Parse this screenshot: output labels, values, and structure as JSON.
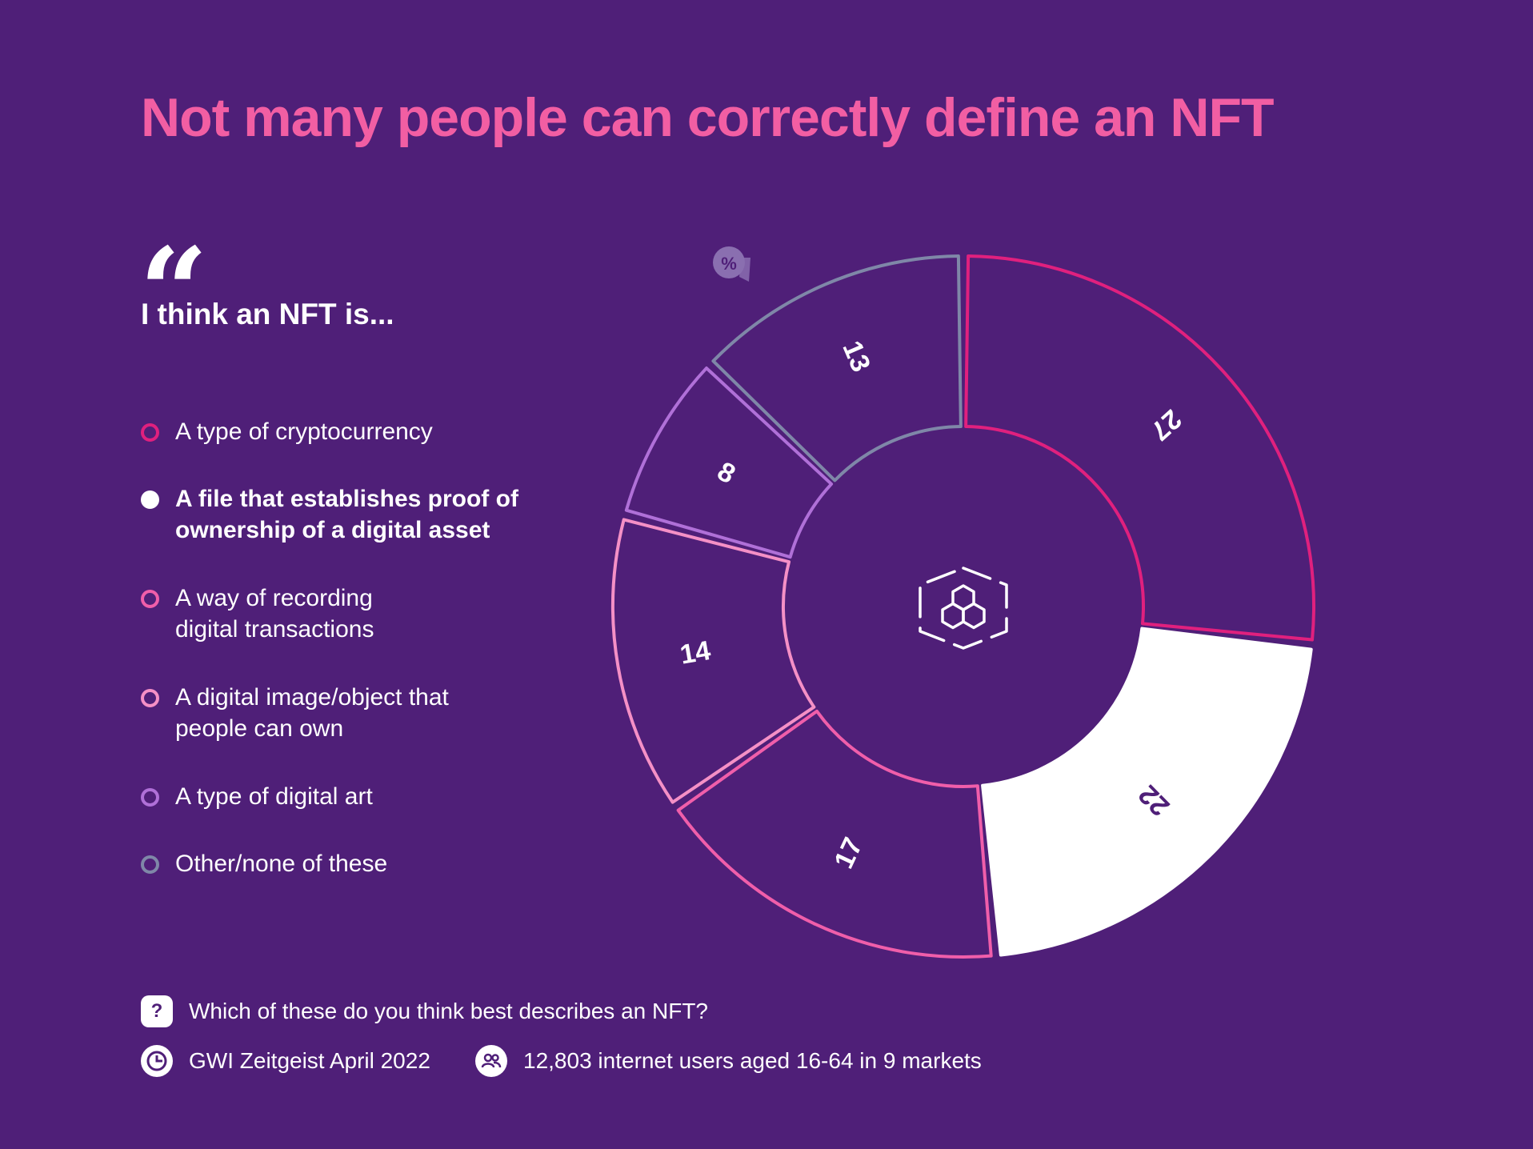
{
  "title": "Not many people can correctly define an NFT",
  "quote": {
    "mark": "“",
    "text": "I think an NFT is..."
  },
  "unit_badge": "%",
  "legend": [
    {
      "label": "A type of cryptocurrency",
      "color": "#e0207e",
      "filled": false
    },
    {
      "label": "A file that establishes proof of ownership of a digital asset",
      "color": "#ffffff",
      "filled": true
    },
    {
      "label": "A way of recording digital transactions",
      "color": "#f05eaa",
      "filled": false
    },
    {
      "label": "A digital image/object that people can own",
      "color": "#f590c6",
      "filled": false
    },
    {
      "label": "A type of digital art",
      "color": "#b070d8",
      "filled": false
    },
    {
      "label": "Other/none of these",
      "color": "#7f87a8",
      "filled": false
    }
  ],
  "chart_data": {
    "type": "pie",
    "variant": "donut",
    "unit": "%",
    "categories": [
      "A type of cryptocurrency",
      "A file that establishes proof of ownership of a digital asset",
      "A way of recording digital transactions",
      "A digital image/object that people can own",
      "A type of digital art",
      "Other/none of these"
    ],
    "values": [
      27,
      22,
      17,
      14,
      8,
      13
    ],
    "colors": [
      "#e0207e",
      "#ffffff",
      "#f05eaa",
      "#f590c6",
      "#b070d8",
      "#7f87a8"
    ],
    "highlight_index": 1
  },
  "footer": {
    "question_icon": "question-icon",
    "question": "Which of these do you think best describes an NFT?",
    "source_icon": "gwi-logo-icon",
    "source": "GWI Zeitgeist April 2022",
    "sample_icon": "users-icon",
    "sample": "12,803 internet users aged 16-64 in 9 markets"
  }
}
